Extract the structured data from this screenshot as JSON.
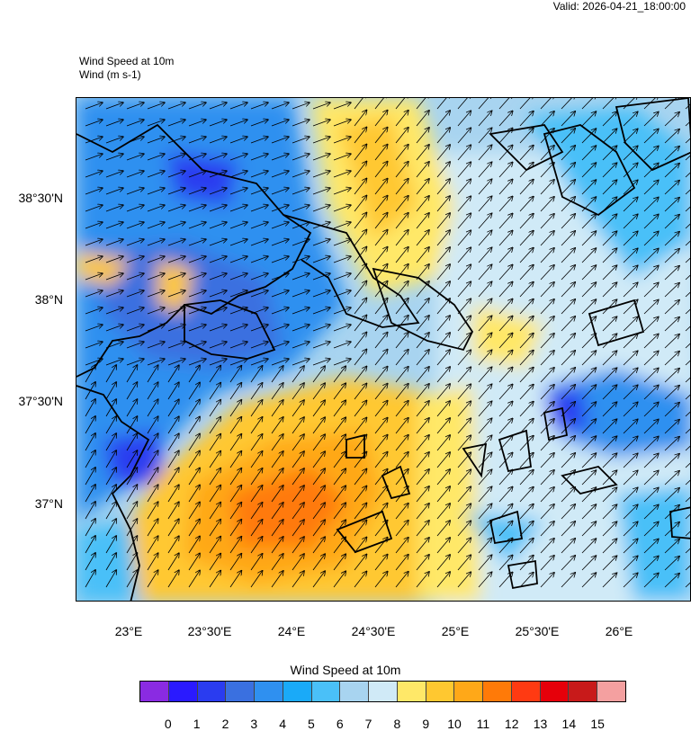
{
  "header": {
    "valid_text": "Valid: 2026-04-21_18:00:00",
    "title_line1": "Wind Speed at 10m",
    "title_line2": "Wind   (m s-1)"
  },
  "map": {
    "lat_labels": [
      "38°30'N",
      "38°N",
      "37°30'N",
      "37°N"
    ],
    "lon_labels": [
      "23°E",
      "23°30'E",
      "24°E",
      "24°30'E",
      "25°E",
      "25°30'E",
      "26°E"
    ]
  },
  "colorbar": {
    "title": "Wind Speed at 10m",
    "colors": [
      "#8a2be2",
      "#2a1aff",
      "#2a3cf0",
      "#3a70e0",
      "#2f90f0",
      "#1aaaf8",
      "#4ac0f8",
      "#a8d4f0",
      "#d0eaf7",
      "#ffe868",
      "#ffc830",
      "#ffa818",
      "#ff7a08",
      "#ff3a12",
      "#e6000a",
      "#c81a1a",
      "#f4a0a0"
    ],
    "labels": [
      "0",
      "1",
      "2",
      "3",
      "4",
      "5",
      "6",
      "7",
      "8",
      "9",
      "10",
      "11",
      "12",
      "13",
      "14",
      "15"
    ]
  }
}
